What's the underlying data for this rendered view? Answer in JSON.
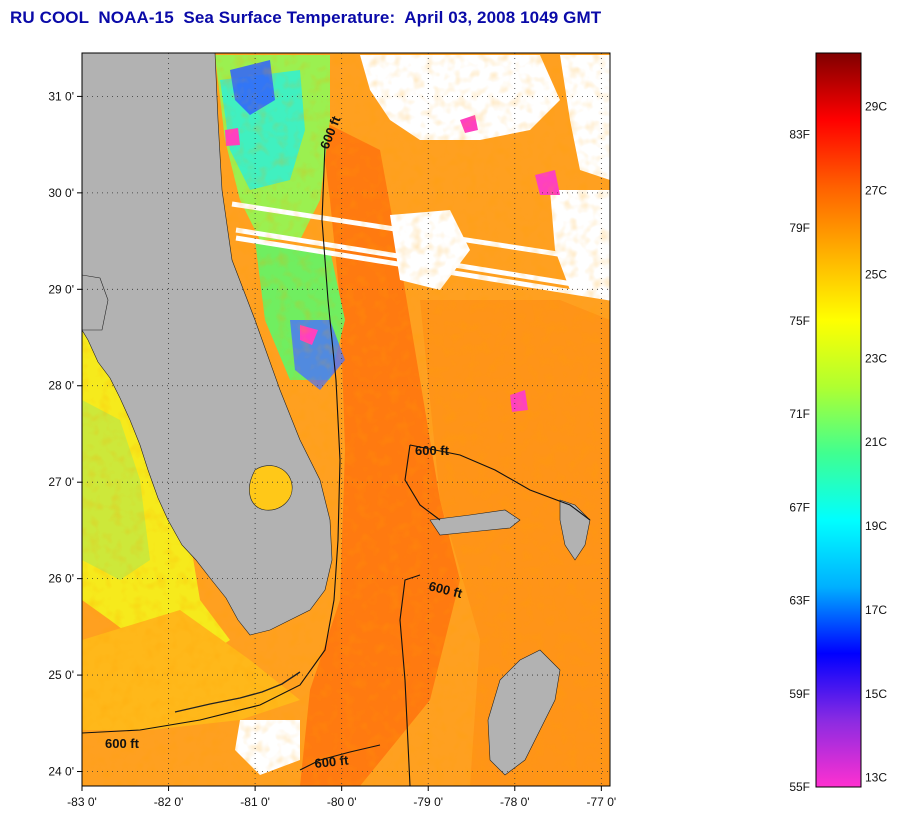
{
  "title": "RU COOL  NOAA-15  Sea Surface Temperature:  April 03, 2008 1049 GMT",
  "map": {
    "lon_ticks": [
      "-83 0'",
      "-82 0'",
      "-81 0'",
      "-80 0'",
      "-79 0'",
      "-78 0'",
      "-77 0'"
    ],
    "lon_values": [
      -83,
      -82,
      -81,
      -80,
      -79,
      -78,
      -77
    ],
    "lat_ticks": [
      "31 0'",
      "30 0'",
      "29 0'",
      "28 0'",
      "27 0'",
      "26 0'",
      "25 0'",
      "24 0'"
    ],
    "lat_values": [
      31,
      30,
      29,
      28,
      27,
      26,
      25,
      24
    ],
    "lon_range": [
      -83,
      -76.9
    ],
    "lat_range": [
      23.85,
      31.45
    ],
    "contour_labels": [
      "600 ft",
      "600 ft",
      "600 ft",
      "600 ft",
      "600 ft"
    ],
    "land_color": "#b2b2b2",
    "cloud_color": "#ffffff"
  },
  "colorbar": {
    "fahrenheit_labels": [
      "83F",
      "79F",
      "75F",
      "71F",
      "67F",
      "63F",
      "59F",
      "55F"
    ],
    "fahrenheit_values": [
      83,
      79,
      75,
      71,
      67,
      63,
      59,
      55
    ],
    "celsius_labels": [
      "29C",
      "27C",
      "25C",
      "23C",
      "21C",
      "19C",
      "17C",
      "15C",
      "13C"
    ],
    "celsius_values": [
      29,
      27,
      25,
      23,
      21,
      19,
      17,
      15,
      13
    ],
    "range_f": [
      55,
      86.5
    ],
    "stops": [
      "#ff30d0",
      "#8a2be2",
      "#0000ff",
      "#00b0ff",
      "#00ffff",
      "#40ff90",
      "#b0ff30",
      "#ffff00",
      "#ffb000",
      "#ff6000",
      "#ff0000",
      "#800000"
    ]
  }
}
